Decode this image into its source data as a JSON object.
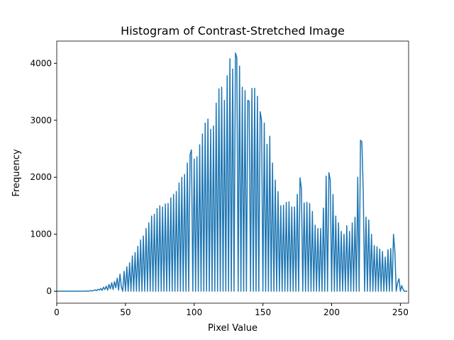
{
  "chart_data": {
    "type": "line",
    "title": "Histogram of Contrast-Stretched Image",
    "xlabel": "Pixel Value",
    "ylabel": "Frequency",
    "x": [
      0,
      1,
      2,
      3,
      4,
      5,
      6,
      7,
      8,
      9,
      10,
      11,
      12,
      13,
      14,
      15,
      16,
      17,
      18,
      19,
      20,
      21,
      22,
      23,
      24,
      25,
      26,
      27,
      28,
      29,
      30,
      31,
      32,
      33,
      34,
      35,
      36,
      37,
      38,
      39,
      40,
      41,
      42,
      43,
      44,
      45,
      46,
      47,
      48,
      49,
      50,
      51,
      52,
      53,
      54,
      55,
      56,
      57,
      58,
      59,
      60,
      61,
      62,
      63,
      64,
      65,
      66,
      67,
      68,
      69,
      70,
      71,
      72,
      73,
      74,
      75,
      76,
      77,
      78,
      79,
      80,
      81,
      82,
      83,
      84,
      85,
      86,
      87,
      88,
      89,
      90,
      91,
      92,
      93,
      94,
      95,
      96,
      97,
      98,
      99,
      100,
      101,
      102,
      103,
      104,
      105,
      106,
      107,
      108,
      109,
      110,
      111,
      112,
      113,
      114,
      115,
      116,
      117,
      118,
      119,
      120,
      121,
      122,
      123,
      124,
      125,
      126,
      127,
      128,
      129,
      130,
      131,
      132,
      133,
      134,
      135,
      136,
      137,
      138,
      139,
      140,
      141,
      142,
      143,
      144,
      145,
      146,
      147,
      148,
      149,
      150,
      151,
      152,
      153,
      154,
      155,
      156,
      157,
      158,
      159,
      160,
      161,
      162,
      163,
      164,
      165,
      166,
      167,
      168,
      169,
      170,
      171,
      172,
      173,
      174,
      175,
      176,
      177,
      178,
      179,
      180,
      181,
      182,
      183,
      184,
      185,
      186,
      187,
      188,
      189,
      190,
      191,
      192,
      193,
      194,
      195,
      196,
      197,
      198,
      199,
      200,
      201,
      202,
      203,
      204,
      205,
      206,
      207,
      208,
      209,
      210,
      211,
      212,
      213,
      214,
      215,
      216,
      217,
      218,
      219,
      220,
      221,
      222,
      223,
      224,
      225,
      226,
      227,
      228,
      229,
      230,
      231,
      232,
      233,
      234,
      235,
      236,
      237,
      238,
      239,
      240,
      241,
      242,
      243,
      244,
      245,
      246,
      247,
      248,
      249,
      250,
      251,
      252,
      253,
      254,
      255
    ],
    "series": [
      {
        "name": "Frequency",
        "color": "#1f77b4",
        "values": [
          0,
          0,
          0,
          0,
          0,
          0,
          0,
          0,
          0,
          0,
          0,
          0,
          0,
          0,
          0,
          0,
          0,
          0,
          0,
          0,
          3,
          0,
          5,
          0,
          8,
          10,
          5,
          15,
          25,
          10,
          35,
          20,
          50,
          15,
          70,
          30,
          90,
          20,
          120,
          40,
          150,
          30,
          170,
          60,
          230,
          20,
          300,
          80,
          0,
          350,
          0,
          430,
          0,
          500,
          0,
          620,
          0,
          680,
          0,
          790,
          0,
          900,
          0,
          970,
          0,
          1100,
          0,
          1200,
          0,
          1320,
          0,
          1350,
          0,
          1450,
          0,
          1500,
          0,
          1480,
          0,
          1530,
          0,
          1540,
          0,
          1640,
          0,
          1700,
          0,
          1750,
          0,
          1900,
          0,
          2000,
          0,
          2050,
          0,
          2250,
          0,
          2400,
          2480,
          0,
          2320,
          0,
          2360,
          0,
          2570,
          0,
          2760,
          0,
          2950,
          0,
          3020,
          0,
          2840,
          0,
          2900,
          0,
          3300,
          0,
          3550,
          0,
          3580,
          0,
          3350,
          0,
          3780,
          0,
          4080,
          0,
          3900,
          0,
          4180,
          4100,
          0,
          3950,
          0,
          3580,
          0,
          3520,
          0,
          3350,
          3330,
          0,
          3560,
          0,
          3560,
          0,
          3420,
          0,
          3150,
          3000,
          0,
          2950,
          0,
          2580,
          0,
          2720,
          0,
          2250,
          0,
          1950,
          0,
          1750,
          0,
          1500,
          0,
          1510,
          0,
          1560,
          0,
          1570,
          0,
          1480,
          0,
          1480,
          0,
          1700,
          0,
          1990,
          1800,
          0,
          1550,
          0,
          1560,
          0,
          1540,
          0,
          1400,
          0,
          1160,
          0,
          1100,
          0,
          1100,
          0,
          1460,
          0,
          2020,
          0,
          2080,
          1950,
          0,
          1700,
          0,
          1320,
          0,
          1200,
          0,
          1050,
          0,
          1000,
          0,
          1150,
          0,
          1050,
          0,
          1200,
          0,
          1300,
          0,
          2000,
          0,
          2650,
          2620,
          1750,
          0,
          1300,
          0,
          1250,
          0,
          1000,
          0,
          800,
          0,
          780,
          0,
          740,
          0,
          700,
          0,
          600,
          0,
          730,
          0,
          750,
          0,
          1000,
          700,
          0,
          150,
          220,
          0,
          100,
          30,
          0,
          0,
          0
        ]
      }
    ],
    "xlim": [
      0,
      256
    ],
    "xticks": [
      0,
      50,
      100,
      150,
      200,
      250
    ],
    "ylim": [
      -209,
      4389
    ],
    "yticks": [
      0,
      1000,
      2000,
      3000,
      4000
    ]
  }
}
